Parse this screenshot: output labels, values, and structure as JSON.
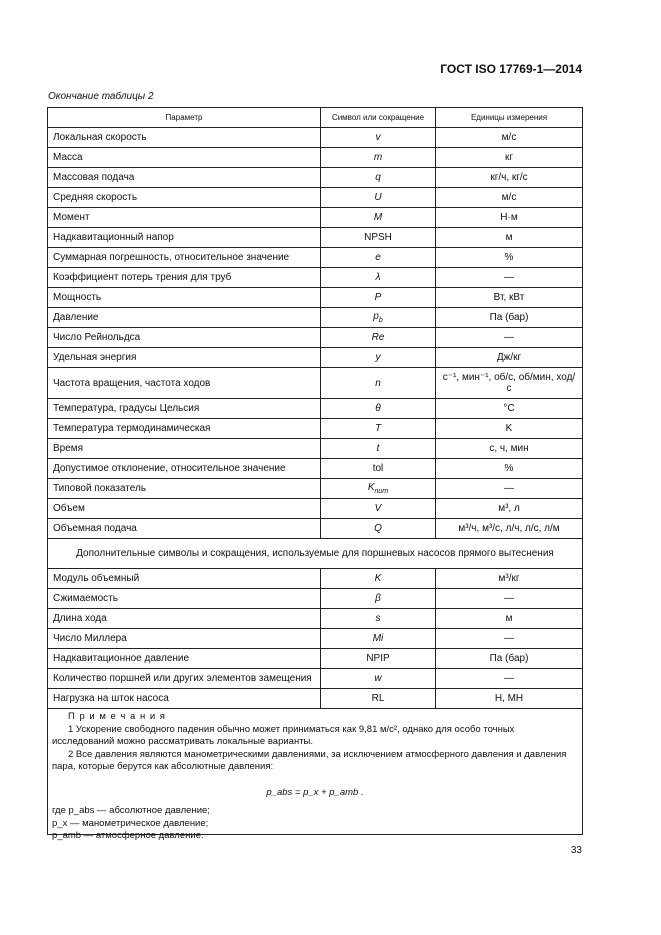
{
  "header": "ГОСТ ISO 17769-1—2014",
  "caption": "Окончание таблицы 2",
  "columns": [
    "Параметр",
    "Символ или сокращение",
    "Единицы измерения"
  ],
  "rows": [
    {
      "p": "Локальная скорость",
      "s": "v",
      "u": "м/с"
    },
    {
      "p": "Масса",
      "s": "m",
      "u": "кг"
    },
    {
      "p": "Массовая подача",
      "s": "q",
      "u": "кг/ч, кг/с"
    },
    {
      "p": "Средняя скорость",
      "s": "U",
      "u": "м/с"
    },
    {
      "p": "Момент",
      "s": "M",
      "u": "Н·м"
    },
    {
      "p": "Надкавитационный напор",
      "s": "NPSH",
      "u": "м"
    },
    {
      "p": "Суммарная погрешность, относительное значение",
      "s": "e",
      "u": "%"
    },
    {
      "p": "Коэффициент потерь трения для труб",
      "s": "λ",
      "u": "—"
    },
    {
      "p": "Мощность",
      "s": "P",
      "u": "Вт, кВт"
    },
    {
      "p": "Давление",
      "s": "p",
      "sub": "b",
      "u": "Па (бар)"
    },
    {
      "p": "Число Рейнольдса",
      "s": "Re",
      "u": "—"
    },
    {
      "p": "Удельная энергия",
      "s": "y",
      "u": "Дж/кг"
    },
    {
      "p": "Частота вращения, частота ходов",
      "s": "n",
      "u": "с⁻¹, мин⁻¹, об/с, об/мин, ход/с"
    },
    {
      "p": "Температура, градусы Цельсия",
      "s": "θ",
      "u": "°C"
    },
    {
      "p": "Температура термодинамическая",
      "s": "T",
      "u": "K"
    },
    {
      "p": "Время",
      "s": "t",
      "u": "с, ч, мин"
    },
    {
      "p": "Допустимое отклонение, относительное значение",
      "s": "tol",
      "u": "%"
    },
    {
      "p": "Типовой показатель",
      "s": "K",
      "sub": "num",
      "u": "—"
    },
    {
      "p": "Объем",
      "s": "V",
      "u": "м³, л"
    },
    {
      "p": "Объемная подача",
      "s": "Q",
      "u": "м³/ч, м³/с, л/ч, л/с, л/м"
    }
  ],
  "section": "Дополнительные символы и сокращения, используемые для поршневых насосов прямого вытеснения",
  "rows2": [
    {
      "p": "Модуль объемный",
      "s": "K",
      "u": "м³/кг"
    },
    {
      "p": "Сжимаемость",
      "s": "β",
      "u": "—"
    },
    {
      "p": "Длина хода",
      "s": "s",
      "u": "м"
    },
    {
      "p": "Число Миллера",
      "s": "Mi",
      "u": "—"
    },
    {
      "p": "Надкавитационное давление",
      "s": "NPIP",
      "u": "Па (бар)"
    },
    {
      "p": "Количество поршней или других элементов замещения",
      "s": "w",
      "u": "—"
    },
    {
      "p": "Нагрузка на шток насоса",
      "s": "RL",
      "u": "Н, МН"
    }
  ],
  "notes": {
    "title": "П р и м е ч а н и я",
    "n1": "1 Ускорение свободного падения обычно может приниматься как 9,81 м/с², однако для особо точных исследований можно рассматривать локальные варианты.",
    "n2": "2 Все давления являются манометрическими давлениями, за исключением атмосферного давления и давления пара, которые берутся как абсолютные давления:",
    "formula": "p_abs = p_x + p_amb .",
    "w1": "где p_abs — абсолютное давление;",
    "w2": "p_x — манометрическое давление;",
    "w3": "p_amb — атмосферное давление."
  },
  "page_number": "33"
}
